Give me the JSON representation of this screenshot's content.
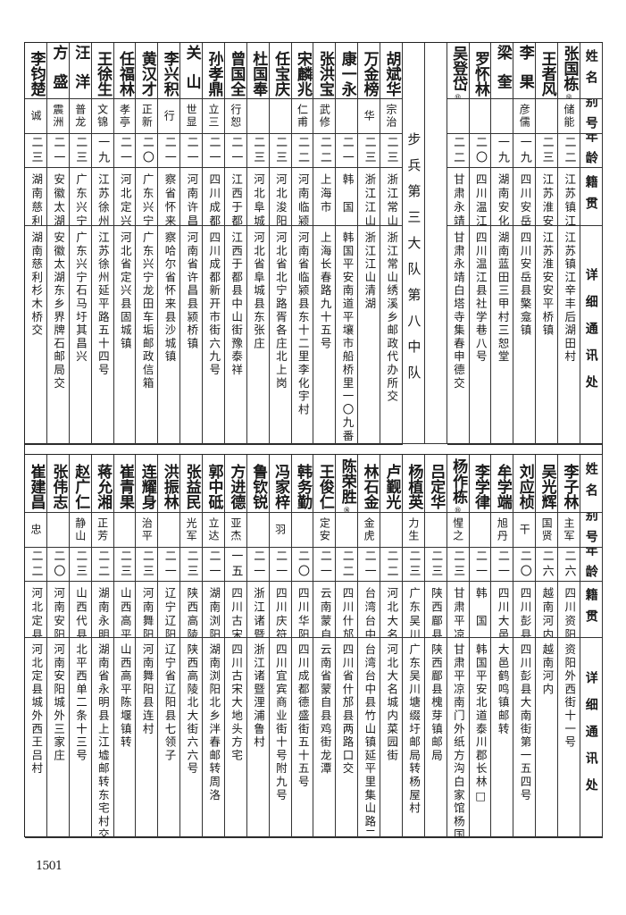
{
  "header": {
    "name": "姓名",
    "alias": "别号",
    "age": "年龄",
    "origin": "籍贯",
    "address": "详细通讯处"
  },
  "top_table": {
    "unit_label": "步兵第三大队第八中队",
    "rows_right": [
      {
        "name": "张国栋",
        "note": "⑫",
        "alias": "储能",
        "age": "二二",
        "origin": "江苏镇江",
        "address": "江苏镇江辛丰后湖田村"
      },
      {
        "name": "王者风",
        "note": "",
        "alias": "",
        "age": "二三",
        "origin": "江苏淮安",
        "address": "江苏淮安安平桥镇"
      },
      {
        "name": "李果",
        "note": "",
        "alias": "彦儒",
        "age": "一九",
        "origin": "四川安岳",
        "address": "四川安岳县檠龛镇"
      },
      {
        "name": "梁奎",
        "note": "",
        "alias": "",
        "age": "一九",
        "origin": "湖南安化",
        "address": "湖南蓝田三甲村三恕堂"
      },
      {
        "name": "罗怀林",
        "note": "",
        "alias": "",
        "age": "二〇",
        "origin": "四川温江",
        "address": "四川温江县社学巷八号"
      },
      {
        "name": "吴登岱",
        "note": "⑬",
        "alias": "",
        "age": "二二",
        "origin": "甘肃永靖",
        "address": "甘肃永靖白塔寺集春申德交"
      }
    ],
    "rows_left": [
      {
        "name": "胡斌华",
        "note": "",
        "alias": "宗治",
        "age": "二三",
        "origin": "浙江常山",
        "address": "浙江常山绣溪乡邮政代办所交"
      },
      {
        "name": "万金榜",
        "note": "",
        "alias": "华",
        "age": "二三",
        "origin": "浙江江山",
        "address": "浙江江山清湖"
      },
      {
        "name": "康一永",
        "note": "",
        "alias": "",
        "age": "二一",
        "origin": "韩　国",
        "address": "韩国平安南道平壤市船桥里一〇九番地"
      },
      {
        "name": "张洪宝",
        "note": "",
        "alias": "武修",
        "age": "二二",
        "origin": "上海市",
        "address": "上海长春路九十五号"
      },
      {
        "name": "宋麟兆",
        "note": "",
        "alias": "仁甫",
        "age": "二二",
        "origin": "河南临颍",
        "address": "河南省临颍县东十二里李化宇村"
      },
      {
        "name": "任宝庆",
        "note": "",
        "alias": "",
        "age": "二三",
        "origin": "河北浚阳⑭",
        "address": "河北省北宁路胥各庄北上岗"
      },
      {
        "name": "杜国奉",
        "note": "",
        "alias": "",
        "age": "二三",
        "origin": "河北阜城",
        "address": "河北省阜城县东张庄"
      },
      {
        "name": "曾国全",
        "note": "",
        "alias": "行恕",
        "age": "二一",
        "origin": "江西于都",
        "address": "江西于都县中山街豫泰祥"
      },
      {
        "name": "孙孝鼎",
        "note": "",
        "alias": "立三",
        "age": "二一",
        "origin": "四川成都",
        "address": "四川成都新开市街六九号"
      },
      {
        "name": "关山",
        "note": "",
        "alias": "世显",
        "age": "二一",
        "origin": "河南许昌",
        "address": "河南省许昌县颍桥镇"
      },
      {
        "name": "李兴积",
        "note": "",
        "alias": "行",
        "age": "二一",
        "origin": "察省怀来",
        "address": "察哈尔省怀来县沙城镇"
      },
      {
        "name": "黄汉才",
        "note": "",
        "alias": "正新",
        "age": "二〇",
        "origin": "广东兴宁",
        "address": "广东兴宁龙田车垢邮政信箱"
      },
      {
        "name": "任福林",
        "note": "",
        "alias": "孝亭",
        "age": "二一",
        "origin": "河北定兴",
        "address": "河北省定兴县固城镇"
      },
      {
        "name": "王徐生",
        "note": "",
        "alias": "文锦",
        "age": "一九",
        "origin": "江苏徐州",
        "address": "江苏徐州延平路五十四号"
      },
      {
        "name": "汪洋",
        "note": "",
        "alias": "普龙",
        "age": "二三",
        "origin": "广东兴宁",
        "address": "广东兴宁石马圩其昌兴"
      },
      {
        "name": "方盛",
        "note": "",
        "alias": "震洲",
        "age": "二一",
        "origin": "安徽太湖",
        "address": "安徽太湖东乡界牌石邮局交"
      },
      {
        "name": "李钧楚",
        "note": "",
        "alias": "诚",
        "age": "二三",
        "origin": "湖南慈利",
        "address": "湖南慈利杉木桥交"
      }
    ]
  },
  "bottom_table": {
    "rows": [
      {
        "name": "李子林",
        "note": "",
        "alias": "主军",
        "age": "二六",
        "origin": "四川资阳",
        "address": "资阳外西街十一号"
      },
      {
        "name": "吴光辉",
        "note": "",
        "alias": "国贤",
        "age": "二六",
        "origin": "越南河内",
        "address": "越南河内"
      },
      {
        "name": "刘应桢",
        "note": "",
        "alias": "干",
        "age": "二〇",
        "origin": "四川彭县",
        "address": "四川彭县大南街第一五四号"
      },
      {
        "name": "牟学端",
        "note": "",
        "alias": "旭丹",
        "age": "二一",
        "origin": "四川大邑",
        "address": "大邑鹤鸣镇邮转"
      },
      {
        "name": "李学律",
        "note": "",
        "alias": "",
        "age": "二一",
        "origin": "韩　国",
        "address": "韩国平安北道泰川郡长林□"
      },
      {
        "name": "杨作栋",
        "note": "⑮",
        "alias": "惺之",
        "age": "二三",
        "origin": "甘肃平凉",
        "address": "甘肃平凉南门外纸方沟白家馆杨国桢先生转"
      },
      {
        "name": "吕定华",
        "note": "",
        "alias": "",
        "age": "二三",
        "origin": "陕西郿县",
        "address": "陕西郿县槐芽镇邮局"
      },
      {
        "name": "杨植英",
        "note": "",
        "alias": "力生",
        "age": "二三",
        "origin": "广东吴川",
        "address": "广东吴川塘缀圩邮局转杨屋村"
      },
      {
        "name": "卢觐光",
        "note": "",
        "alias": "",
        "age": "二二",
        "origin": "河北大名",
        "address": "河北大名城内菜园街"
      },
      {
        "name": "林石金",
        "note": "",
        "alias": "金虎",
        "age": "二一",
        "origin": "台湾台中",
        "address": "台湾台中县竹山镇延平里集山路二九七号"
      },
      {
        "name": "陈荣胜",
        "note": "⑯",
        "alias": "",
        "age": "二二",
        "origin": "四川什邡",
        "address": "四川省什邡县两路口交"
      },
      {
        "name": "王俊仁",
        "note": "",
        "alias": "定安",
        "age": "二一",
        "origin": "云南蒙自",
        "address": "云南省蒙自县鸡街龙潭"
      },
      {
        "name": "韩务勤",
        "note": "",
        "alias": "",
        "age": "二〇",
        "origin": "四川华阳",
        "address": "四川成都德盛街五十五号"
      },
      {
        "name": "冯家梓",
        "note": "",
        "alias": "羽",
        "age": "二一",
        "origin": "四川庆符",
        "address": "四川宜宾商业街十号附九号"
      },
      {
        "name": "鲁钦锐",
        "note": "",
        "alias": "",
        "age": "二一",
        "origin": "浙江诸暨",
        "address": "浙江诸暨浬浦鲁村"
      },
      {
        "name": "方进德",
        "note": "",
        "alias": "亚杰",
        "age": "一五",
        "origin": "四川古宋",
        "address": "四川古宋大地头方宅"
      },
      {
        "name": "郭中砥",
        "note": "",
        "alias": "立达",
        "age": "二一",
        "origin": "湖南浏阳",
        "address": "湖南浏阳北乡泮春邮转周洛"
      },
      {
        "name": "张益民",
        "note": "",
        "alias": "光军",
        "age": "二三",
        "origin": "陕西高陵",
        "address": "陕西高陵北大街六六号"
      },
      {
        "name": "洪振林",
        "note": "",
        "alias": "",
        "age": "二一",
        "origin": "辽宁辽阳",
        "address": "辽宁省辽阳县七领子"
      },
      {
        "name": "连耀身",
        "note": "",
        "alias": "治平",
        "age": "二三",
        "origin": "河南舞阳",
        "address": "河南舞阳县连村"
      },
      {
        "name": "崔青果",
        "note": "",
        "alias": "",
        "age": "二三",
        "origin": "山西高平",
        "address": "山西高平陈堰镇转"
      },
      {
        "name": "蒋允湘",
        "note": "",
        "alias": "正芳",
        "age": "二二",
        "origin": "湖南永明",
        "address": "湖南省永明县上江墟邮转东宅村交"
      },
      {
        "name": "赵广仁",
        "note": "",
        "alias": "静山",
        "age": "二三",
        "origin": "山西代县",
        "address": "北平西单二条十三号"
      },
      {
        "name": "张伟志",
        "note": "",
        "alias": "",
        "age": "二〇",
        "origin": "河南安阳",
        "address": "河南安阳城外三家庄"
      },
      {
        "name": "崔建昌",
        "note": "",
        "alias": "忠",
        "age": "二二",
        "origin": "河北定县",
        "address": "河北定县城外西王吕村"
      }
    ]
  },
  "page_number": "1501"
}
